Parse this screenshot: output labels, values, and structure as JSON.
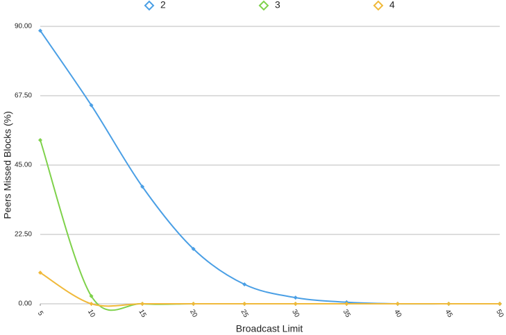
{
  "chart_data": {
    "type": "line",
    "x_label": "Broadcast Limit",
    "y_label": "Peers Missed Blocks (%)",
    "x": [
      5,
      10,
      15,
      20,
      25,
      30,
      35,
      40,
      45,
      50
    ],
    "xlim": [
      5,
      50
    ],
    "xticks": [
      5,
      10,
      15,
      20,
      25,
      30,
      35,
      40,
      45,
      50
    ],
    "ylim": [
      0,
      90
    ],
    "yticks": [
      {
        "value": 0,
        "label": "0.00"
      },
      {
        "value": 22.5,
        "label": "22.50"
      },
      {
        "value": 45,
        "label": "45.00"
      },
      {
        "value": 67.5,
        "label": "67.50"
      },
      {
        "value": 90,
        "label": "90.00"
      }
    ],
    "grid": true,
    "smooth": true,
    "legend": "top",
    "series": [
      {
        "name": "2",
        "color": "#4a9fe5",
        "values": [
          88.6,
          64.4,
          38.0,
          17.8,
          6.3,
          2.0,
          0.5,
          0,
          0,
          0
        ]
      },
      {
        "name": "3",
        "color": "#7ed14a",
        "values": [
          53.1,
          2.5,
          0,
          0,
          0,
          0,
          0,
          0,
          0,
          0
        ]
      },
      {
        "name": "4",
        "color": "#f0b93a",
        "values": [
          10.1,
          0,
          0,
          0,
          0,
          0,
          0,
          0,
          0,
          0
        ]
      }
    ]
  }
}
